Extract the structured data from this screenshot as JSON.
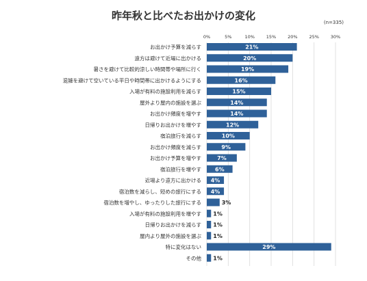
{
  "title": "昨年秋と比べたお出かけの変化",
  "note": "(n=335)",
  "colors": {
    "bar": "#2f6199",
    "bar_label": "#ffffff",
    "outside_label": "#222222",
    "grid": "#d9d9d9",
    "text": "#333333"
  },
  "chart_data": {
    "type": "bar",
    "orientation": "horizontal",
    "title": "昨年秋と比べたお出かけの変化",
    "xlim": [
      0,
      30
    ],
    "ticks": [
      "0%",
      "5%",
      "10%",
      "15%",
      "20%",
      "25%",
      "30%"
    ],
    "tick_values": [
      0,
      5,
      10,
      15,
      20,
      25,
      30
    ],
    "grid": true,
    "categories": [
      "お出かけ予算を減らす",
      "遠方は避けて近場に出かける",
      "暑さを避けて比較的涼しい時間帯や場所に行く",
      "混雑を避けて空いている平日や時間帯に出かけるようにする",
      "入場が有料の施設利用を減らす",
      "屋外より屋内の施設を選ぶ",
      "お出かけ頻度を増やす",
      "日帰りお出かけを増やす",
      "宿泊旅行を減らす",
      "お出かけ頻度を減らす",
      "お出かけ予算を増やす",
      "宿泊旅行を増やす",
      "近場より遠方に出かける",
      "宿泊数を減らし、短めの旅行にする",
      "宿泊数を増やし、ゆったりした旅行にする",
      "入場が有料の施設利用を増やす",
      "日帰りお出かけを減らす",
      "屋内より屋外の施設を選ぶ",
      "特に変化はない",
      "その他"
    ],
    "values": [
      21,
      20,
      19,
      16,
      15,
      14,
      14,
      12,
      10,
      9,
      7,
      6,
      4,
      4,
      3,
      1,
      1,
      1,
      29,
      1
    ],
    "labels": [
      "21%",
      "20%",
      "19%",
      "16%",
      "15%",
      "14%",
      "14%",
      "12%",
      "10%",
      "9%",
      "7%",
      "6%",
      "4%",
      "4%",
      "3%",
      "1%",
      "1%",
      "1%",
      "29%",
      "1%"
    ]
  }
}
